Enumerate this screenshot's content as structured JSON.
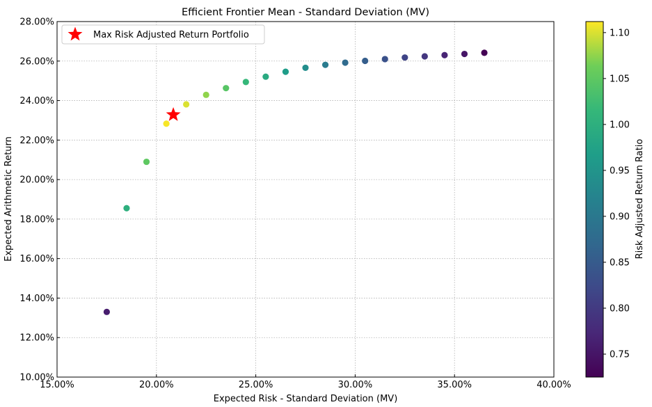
{
  "chart_data": {
    "type": "scatter",
    "title": "Efficient Frontier Mean - Standard Deviation (MV)",
    "xlabel": "Expected Risk - Standard Deviation (MV)",
    "ylabel": "Expected Arithmetic Return",
    "xlim": [
      0.15,
      0.4
    ],
    "ylim": [
      0.1,
      0.28
    ],
    "x_ticks": [
      0.15,
      0.2,
      0.25,
      0.3,
      0.35,
      0.4
    ],
    "x_tick_labels": [
      "15.00%",
      "20.00%",
      "25.00%",
      "30.00%",
      "35.00%",
      "40.00%"
    ],
    "y_ticks": [
      0.1,
      0.12,
      0.14,
      0.16,
      0.18,
      0.2,
      0.22,
      0.24,
      0.26,
      0.28
    ],
    "y_tick_labels": [
      "10.00%",
      "12.00%",
      "14.00%",
      "16.00%",
      "18.00%",
      "20.00%",
      "22.00%",
      "24.00%",
      "26.00%",
      "28.00%"
    ],
    "grid": true,
    "legend_placement": "top-left",
    "colormap": "viridis",
    "series": [
      {
        "x": [
          0.175,
          0.185,
          0.195,
          0.205,
          0.215,
          0.225,
          0.235,
          0.245,
          0.255,
          0.265,
          0.275,
          0.285,
          0.295,
          0.305,
          0.315,
          0.325,
          0.335,
          0.345,
          0.355,
          0.365
        ],
        "y": [
          0.133,
          0.1855,
          0.209,
          0.2283,
          0.2381,
          0.2429,
          0.2463,
          0.2494,
          0.2521,
          0.2546,
          0.2566,
          0.2581,
          0.2592,
          0.2601,
          0.261,
          0.2618,
          0.2624,
          0.263,
          0.2636,
          0.2642
        ],
        "ratio": [
          0.76,
          1.0,
          1.05,
          1.11,
          1.1,
          1.075,
          1.045,
          1.015,
          0.99,
          0.965,
          0.94,
          0.905,
          0.875,
          0.855,
          0.835,
          0.815,
          0.795,
          0.77,
          0.75,
          0.725
        ]
      }
    ],
    "highlight": {
      "name": "Max Risk Adjusted Return Portfolio",
      "x": 0.2085,
      "y": 0.2328,
      "marker": "star",
      "color": "#ff0000"
    },
    "colorbar": {
      "label": "Risk Adjusted Return Ratio",
      "range": [
        0.725,
        1.112
      ],
      "ticks": [
        0.75,
        0.8,
        0.85,
        0.9,
        0.95,
        1.0,
        1.05,
        1.1
      ],
      "tick_labels": [
        "0.75",
        "0.80",
        "0.85",
        "0.90",
        "0.95",
        "1.00",
        "1.05",
        "1.10"
      ]
    }
  }
}
